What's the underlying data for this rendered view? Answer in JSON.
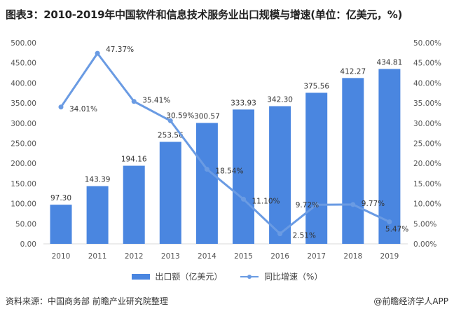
{
  "title": "图表3：2010-2019年中国软件和信息技术服务业出口规模与增速(单位：亿美元，%)",
  "chart_data": {
    "type": "bar+line",
    "categories": [
      "2010",
      "2011",
      "2012",
      "2013",
      "2014",
      "2015",
      "2016",
      "2017",
      "2018",
      "2019"
    ],
    "series": [
      {
        "name": "出口额（亿美元）",
        "type": "bar",
        "axis": "left",
        "color": "#4a86e0",
        "values": [
          97.3,
          143.39,
          194.16,
          253.56,
          300.57,
          333.93,
          342.3,
          375.56,
          412.27,
          434.81
        ],
        "labels": [
          "97.30",
          "143.39",
          "194.16",
          "253.56",
          "300.57",
          "333.93",
          "342.30",
          "375.56",
          "412.27",
          "434.81"
        ]
      },
      {
        "name": "同比增速（%）",
        "type": "line",
        "axis": "right",
        "color": "#6a9be3",
        "values": [
          34.01,
          47.37,
          35.41,
          30.59,
          18.54,
          11.1,
          2.51,
          9.72,
          9.77,
          5.47
        ],
        "labels": [
          "34.01%",
          "47.37%",
          "35.41%",
          "30.59%",
          "18.54%",
          "11.10%",
          "2.51%",
          "9.72%",
          "9.77%",
          "5.47%"
        ]
      }
    ],
    "ylim_left": [
      0,
      500
    ],
    "ylim_right": [
      0,
      50
    ],
    "yticks_left": [
      "0.00",
      "50.00",
      "100.00",
      "150.00",
      "200.00",
      "250.00",
      "300.00",
      "350.00",
      "400.00",
      "450.00",
      "500.00"
    ],
    "yticks_right": [
      "0.00%",
      "5.00%",
      "10.00%",
      "15.00%",
      "20.00%",
      "25.00%",
      "30.00%",
      "35.00%",
      "40.00%",
      "45.00%",
      "50.00%"
    ],
    "grid": false,
    "legend": "bottom"
  },
  "footer": {
    "source": "资料来源：中国商务部 前瞻产业研究院整理",
    "brand": "@前瞻经济学人APP"
  }
}
